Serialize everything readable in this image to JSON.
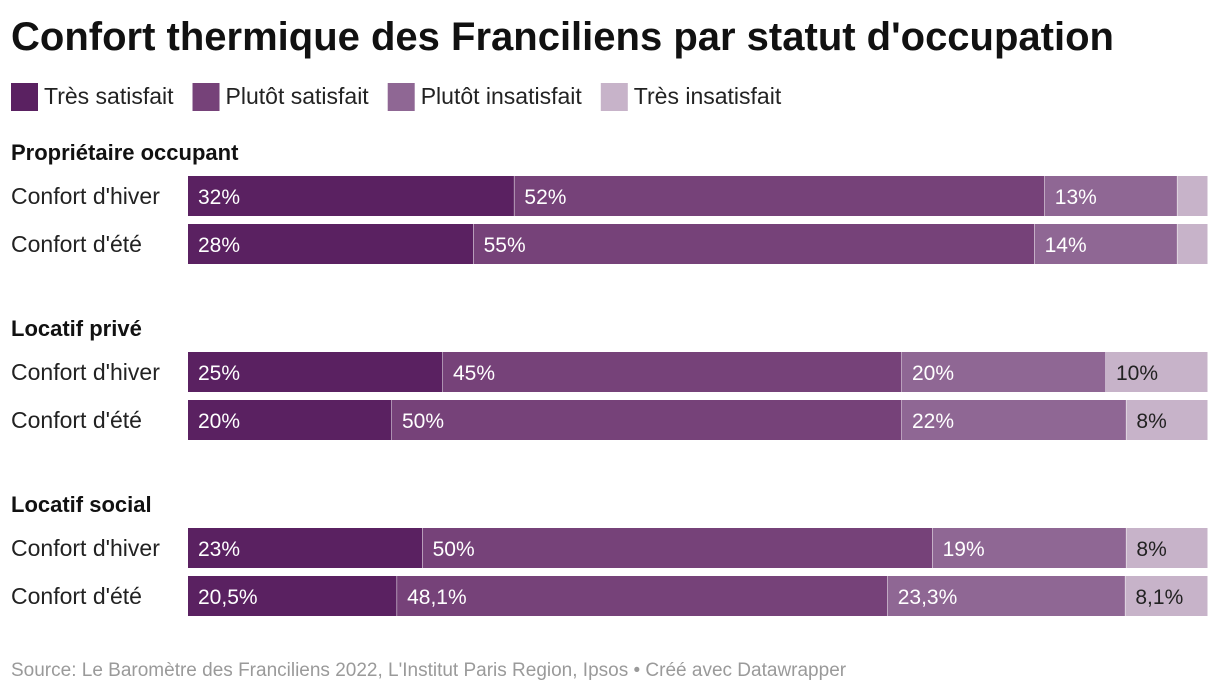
{
  "chart_data": {
    "type": "bar",
    "orientation": "horizontal",
    "stacked": true,
    "title": "Confort thermique des Franciliens par statut d'occupation",
    "legend_position": "top",
    "series": [
      {
        "name": "Très satisfait",
        "color": "#5a2161",
        "label_color": "#ffffff"
      },
      {
        "name": "Plutôt satisfait",
        "color": "#764279",
        "label_color": "#ffffff"
      },
      {
        "name": "Plutôt insatisfait",
        "color": "#8f6794",
        "label_color": "#ffffff"
      },
      {
        "name": "Très insatisfait",
        "color": "#c7b3c9",
        "label_color": "#222222"
      }
    ],
    "groups": [
      {
        "name": "Propriétaire occupant",
        "rows": [
          {
            "label": "Confort d'hiver",
            "values": [
              32,
              52,
              13,
              3
            ],
            "labels": [
              "32%",
              "52%",
              "13%",
              ""
            ]
          },
          {
            "label": "Confort d'été",
            "values": [
              28,
              55,
              14,
              3
            ],
            "labels": [
              "28%",
              "55%",
              "14%",
              ""
            ]
          }
        ]
      },
      {
        "name": "Locatif privé",
        "rows": [
          {
            "label": "Confort d'hiver",
            "values": [
              25,
              45,
              20,
              10
            ],
            "labels": [
              "25%",
              "45%",
              "20%",
              "10%"
            ]
          },
          {
            "label": "Confort d'été",
            "values": [
              20,
              50,
              22,
              8
            ],
            "labels": [
              "20%",
              "50%",
              "22%",
              "8%"
            ]
          }
        ]
      },
      {
        "name": "Locatif social",
        "rows": [
          {
            "label": "Confort d'hiver",
            "values": [
              23,
              50,
              19,
              8
            ],
            "labels": [
              "23%",
              "50%",
              "19%",
              "8%"
            ]
          },
          {
            "label": "Confort d'été",
            "values": [
              20.5,
              48.1,
              23.3,
              8.1
            ],
            "labels": [
              "20,5%",
              "48,1%",
              "23,3%",
              "8,1%"
            ]
          }
        ]
      }
    ],
    "x_range": [
      0,
      100
    ]
  },
  "source": "Source: Le Baromètre des Franciliens 2022, L'Institut Paris Region, Ipsos • Créé avec Datawrapper"
}
